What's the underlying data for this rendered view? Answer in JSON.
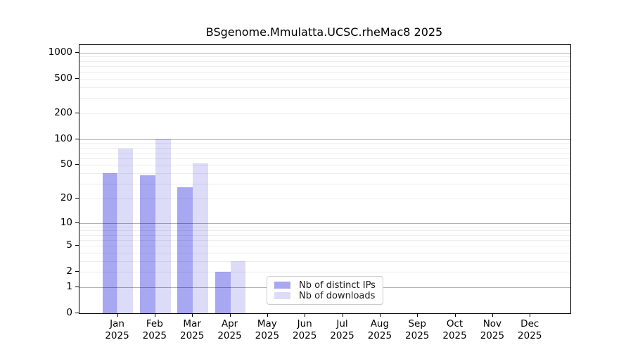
{
  "chart_data": {
    "type": "bar",
    "title": "BSgenome.Mmulatta.UCSC.rheMac8 2025",
    "categories": [
      "Jan",
      "Feb",
      "Mar",
      "Apr",
      "May",
      "Jun",
      "Jul",
      "Aug",
      "Sep",
      "Oct",
      "Nov",
      "Dec"
    ],
    "year_label": "2025",
    "series": [
      {
        "name": "Nb of distinct IPs",
        "color": "#a7a7f2",
        "values": [
          40,
          38,
          27,
          2,
          0,
          0,
          0,
          0,
          0,
          0,
          0,
          0
        ]
      },
      {
        "name": "Nb of downloads",
        "color": "#dcdcf8",
        "values": [
          78,
          102,
          52,
          3,
          0,
          0,
          0,
          0,
          0,
          0,
          0,
          0
        ]
      }
    ],
    "yscale": "log10(value+1)",
    "y_ticks": [
      0,
      1,
      2,
      5,
      10,
      20,
      50,
      100,
      200,
      500,
      1000
    ],
    "ylim": [
      0,
      1000
    ],
    "grid": "on",
    "grid_major_at": [
      1,
      10,
      100,
      1000
    ],
    "legend_position": "bottom-center-inside",
    "colors": {
      "axis": "#000000",
      "grid_major": "#b3b3b3",
      "grid_minor": "#ededed",
      "legend_border": "#cccccc",
      "background": "#ffffff"
    }
  }
}
